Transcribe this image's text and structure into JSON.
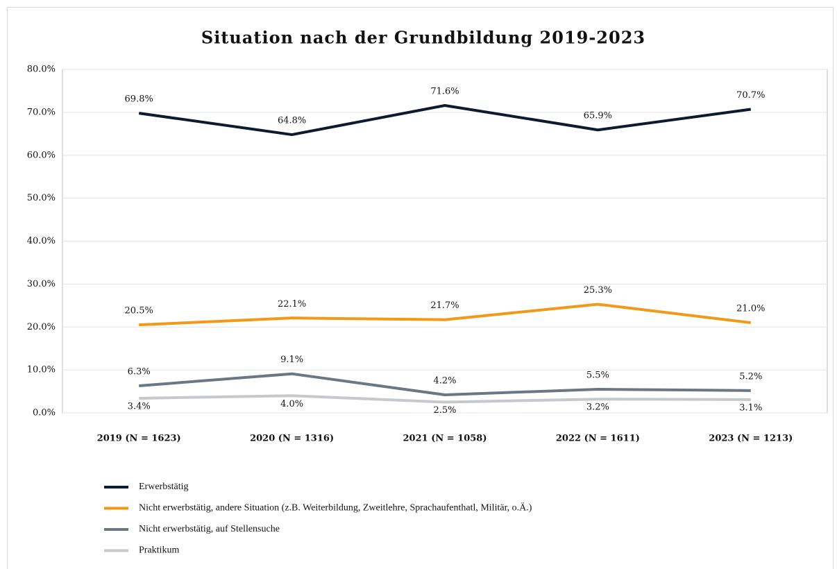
{
  "chart_data": {
    "type": "line",
    "title": "Situation nach der Grundbildung 2019-2023",
    "categories": [
      "2019 (N = 1623)",
      "2020 (N = 1316)",
      "2021 (N = 1058)",
      "2022 (N = 1611)",
      "2023 (N = 1213)"
    ],
    "series": [
      {
        "name": "Erwerbstätig",
        "color": "#0d1b2e",
        "values": [
          69.8,
          64.8,
          71.6,
          65.9,
          70.7
        ],
        "value_labels": [
          "69.8%",
          "64.8%",
          "71.6%",
          "65.9%",
          "70.7%"
        ]
      },
      {
        "name": "Nicht erwerbstätig, andere Situation (z.B. Weiterbildung, Zweitlehre, Sprachaufenthatl, Militär, o.Ä.)",
        "color": "#f29a17",
        "values": [
          20.5,
          22.1,
          21.7,
          25.3,
          21.0
        ],
        "value_labels": [
          "20.5%",
          "22.1%",
          "21.7%",
          "25.3%",
          "21.0%"
        ]
      },
      {
        "name": "Nicht erwerbstätig, auf Stellensuche",
        "color": "#6b7785",
        "values": [
          6.3,
          9.1,
          4.2,
          5.5,
          5.2
        ],
        "value_labels": [
          "6.3%",
          "9.1%",
          "4.2%",
          "5.5%",
          "5.2%"
        ]
      },
      {
        "name": "Praktikum",
        "color": "#c5c9ce",
        "values": [
          3.4,
          4.0,
          2.5,
          3.2,
          3.1
        ],
        "value_labels": [
          "3.4%",
          "4.0%",
          "2.5%",
          "3.2%",
          "3.1%"
        ]
      }
    ],
    "ylim": [
      0,
      80
    ],
    "yticks": [
      {
        "value": 0,
        "label": "0.0%"
      },
      {
        "value": 10,
        "label": "10.0%"
      },
      {
        "value": 20,
        "label": "20.0%"
      },
      {
        "value": 30,
        "label": "30.0%"
      },
      {
        "value": 40,
        "label": "40.0%"
      },
      {
        "value": 50,
        "label": "50.0%"
      },
      {
        "value": 60,
        "label": "60.0%"
      },
      {
        "value": 70,
        "label": "70.0%"
      },
      {
        "value": 80,
        "label": "80.0%"
      }
    ],
    "grid": true
  }
}
